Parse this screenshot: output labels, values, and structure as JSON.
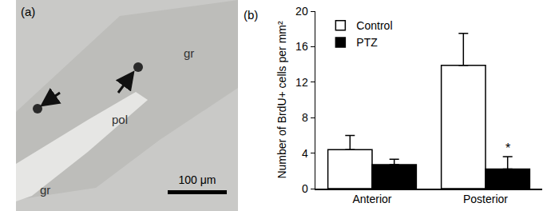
{
  "panel_a": {
    "label": "(a)",
    "region_labels": [
      "gr",
      "pol",
      "gr"
    ],
    "scale_bar": "100 μm"
  },
  "chart_data": {
    "type": "bar",
    "panel_label": "(b)",
    "y_label": "Number of BrdU+ cells per mm²",
    "categories": [
      "Anterior",
      "Posterior"
    ],
    "series": [
      {
        "name": "Control",
        "color": "#ffffff",
        "values": [
          4.4,
          13.9
        ],
        "errors": [
          1.6,
          3.6
        ]
      },
      {
        "name": "PTZ",
        "color": "#000000",
        "values": [
          2.7,
          2.2
        ],
        "errors": [
          0.6,
          1.4
        ]
      }
    ],
    "annotations": [
      {
        "text": "*",
        "category": "Posterior",
        "series": "PTZ"
      }
    ],
    "ylim": [
      0,
      20
    ],
    "yticks": [
      0,
      4,
      8,
      12,
      16,
      20
    ],
    "grid": false,
    "legend": "top-left"
  }
}
